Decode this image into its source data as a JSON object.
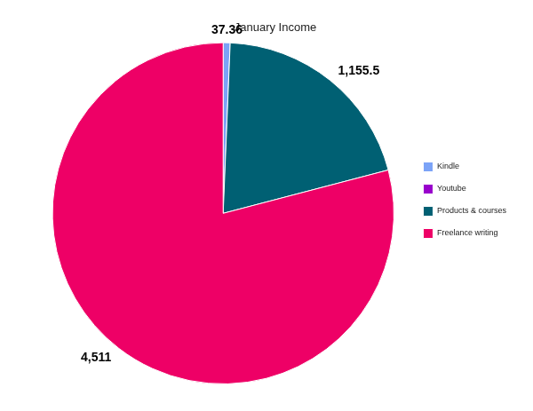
{
  "chart_data": {
    "type": "pie",
    "title": "January Income",
    "categories": [
      "Kindle",
      "Youtube",
      "Products & courses",
      "Freelance writing"
    ],
    "values": [
      37.36,
      0,
      1155.5,
      4511
    ],
    "value_labels": [
      "37.36",
      null,
      "1,155.5",
      "4,511"
    ],
    "colors": [
      "#7ba3f7",
      "#9900cc",
      "#006073",
      "#ee0066"
    ],
    "data_labels": true,
    "legend": "right"
  }
}
